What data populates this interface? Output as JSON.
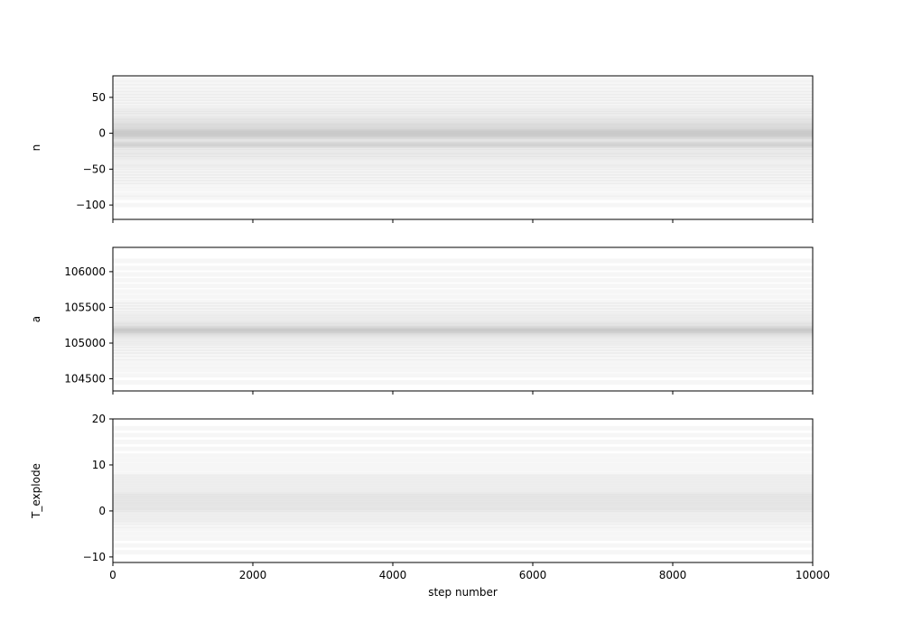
{
  "chart_data": {
    "type": "line",
    "xlabel": "step number",
    "xlim": [
      0,
      10000
    ],
    "xticks": [
      0,
      2000,
      4000,
      6000,
      8000,
      10000
    ],
    "xtick_labels": [
      "0",
      "2000",
      "4000",
      "6000",
      "8000",
      "10000"
    ],
    "trace_color": "#000000",
    "trace_alpha": 0.3,
    "grid": false,
    "panels": [
      {
        "ylabel": "n",
        "ylim": [
          -120,
          80
        ],
        "yticks": [
          50,
          0,
          -50,
          -100
        ],
        "ytick_labels": [
          "50",
          "0",
          "−50",
          "−100"
        ],
        "walker_levels": [
          -100,
          -90,
          -85,
          -78,
          -72,
          -68,
          -64,
          -60,
          -56,
          -52,
          -48,
          -45,
          -42,
          -38,
          -35,
          -32,
          -30,
          -27,
          -25,
          -22,
          -20,
          -18,
          -17,
          -16,
          -15,
          -14,
          -12,
          -10,
          -8,
          -6,
          -5,
          -4,
          -3,
          -2,
          -1,
          0,
          1,
          2,
          3,
          4,
          5,
          6,
          8,
          10,
          11,
          12,
          14,
          16,
          18,
          20,
          22,
          25,
          28,
          30,
          33,
          36,
          40,
          44,
          48,
          52,
          56,
          60,
          65,
          70,
          75
        ]
      },
      {
        "ylabel": "a",
        "ylim": [
          104330,
          106340
        ],
        "yticks": [
          106000,
          105500,
          105000,
          104500
        ],
        "ytick_labels": [
          "106000",
          "105500",
          "105000",
          "104500"
        ],
        "walker_levels": [
          104450,
          104550,
          104620,
          104680,
          104740,
          104790,
          104840,
          104880,
          104920,
          104960,
          104990,
          105020,
          105050,
          105080,
          105100,
          105120,
          105140,
          105150,
          105160,
          105170,
          105180,
          105190,
          105200,
          105210,
          105220,
          105240,
          105260,
          105280,
          105300,
          105330,
          105360,
          105390,
          105420,
          105460,
          105500,
          105540,
          105580,
          105650,
          105720,
          105800,
          105880,
          105960,
          106050,
          106150
        ]
      },
      {
        "ylabel": "T_explode",
        "ylim": [
          -11.2,
          20
        ],
        "yticks": [
          20,
          10,
          0,
          -10
        ],
        "ytick_labels": [
          "20",
          "10",
          "0",
          "−10"
        ],
        "walker_levels": [
          -9,
          -7.5,
          -6,
          -5,
          -4,
          -3.2,
          -2.5,
          -2,
          -1.5,
          -1,
          -0.5,
          0,
          0.3,
          0.6,
          1,
          1.3,
          1.6,
          2,
          2.3,
          2.6,
          3,
          3.3,
          3.6,
          4,
          4.5,
          5,
          5.5,
          6,
          6.5,
          7,
          7.5,
          8,
          9,
          10,
          11,
          12,
          13.5,
          15,
          16.5,
          18
        ]
      }
    ]
  }
}
